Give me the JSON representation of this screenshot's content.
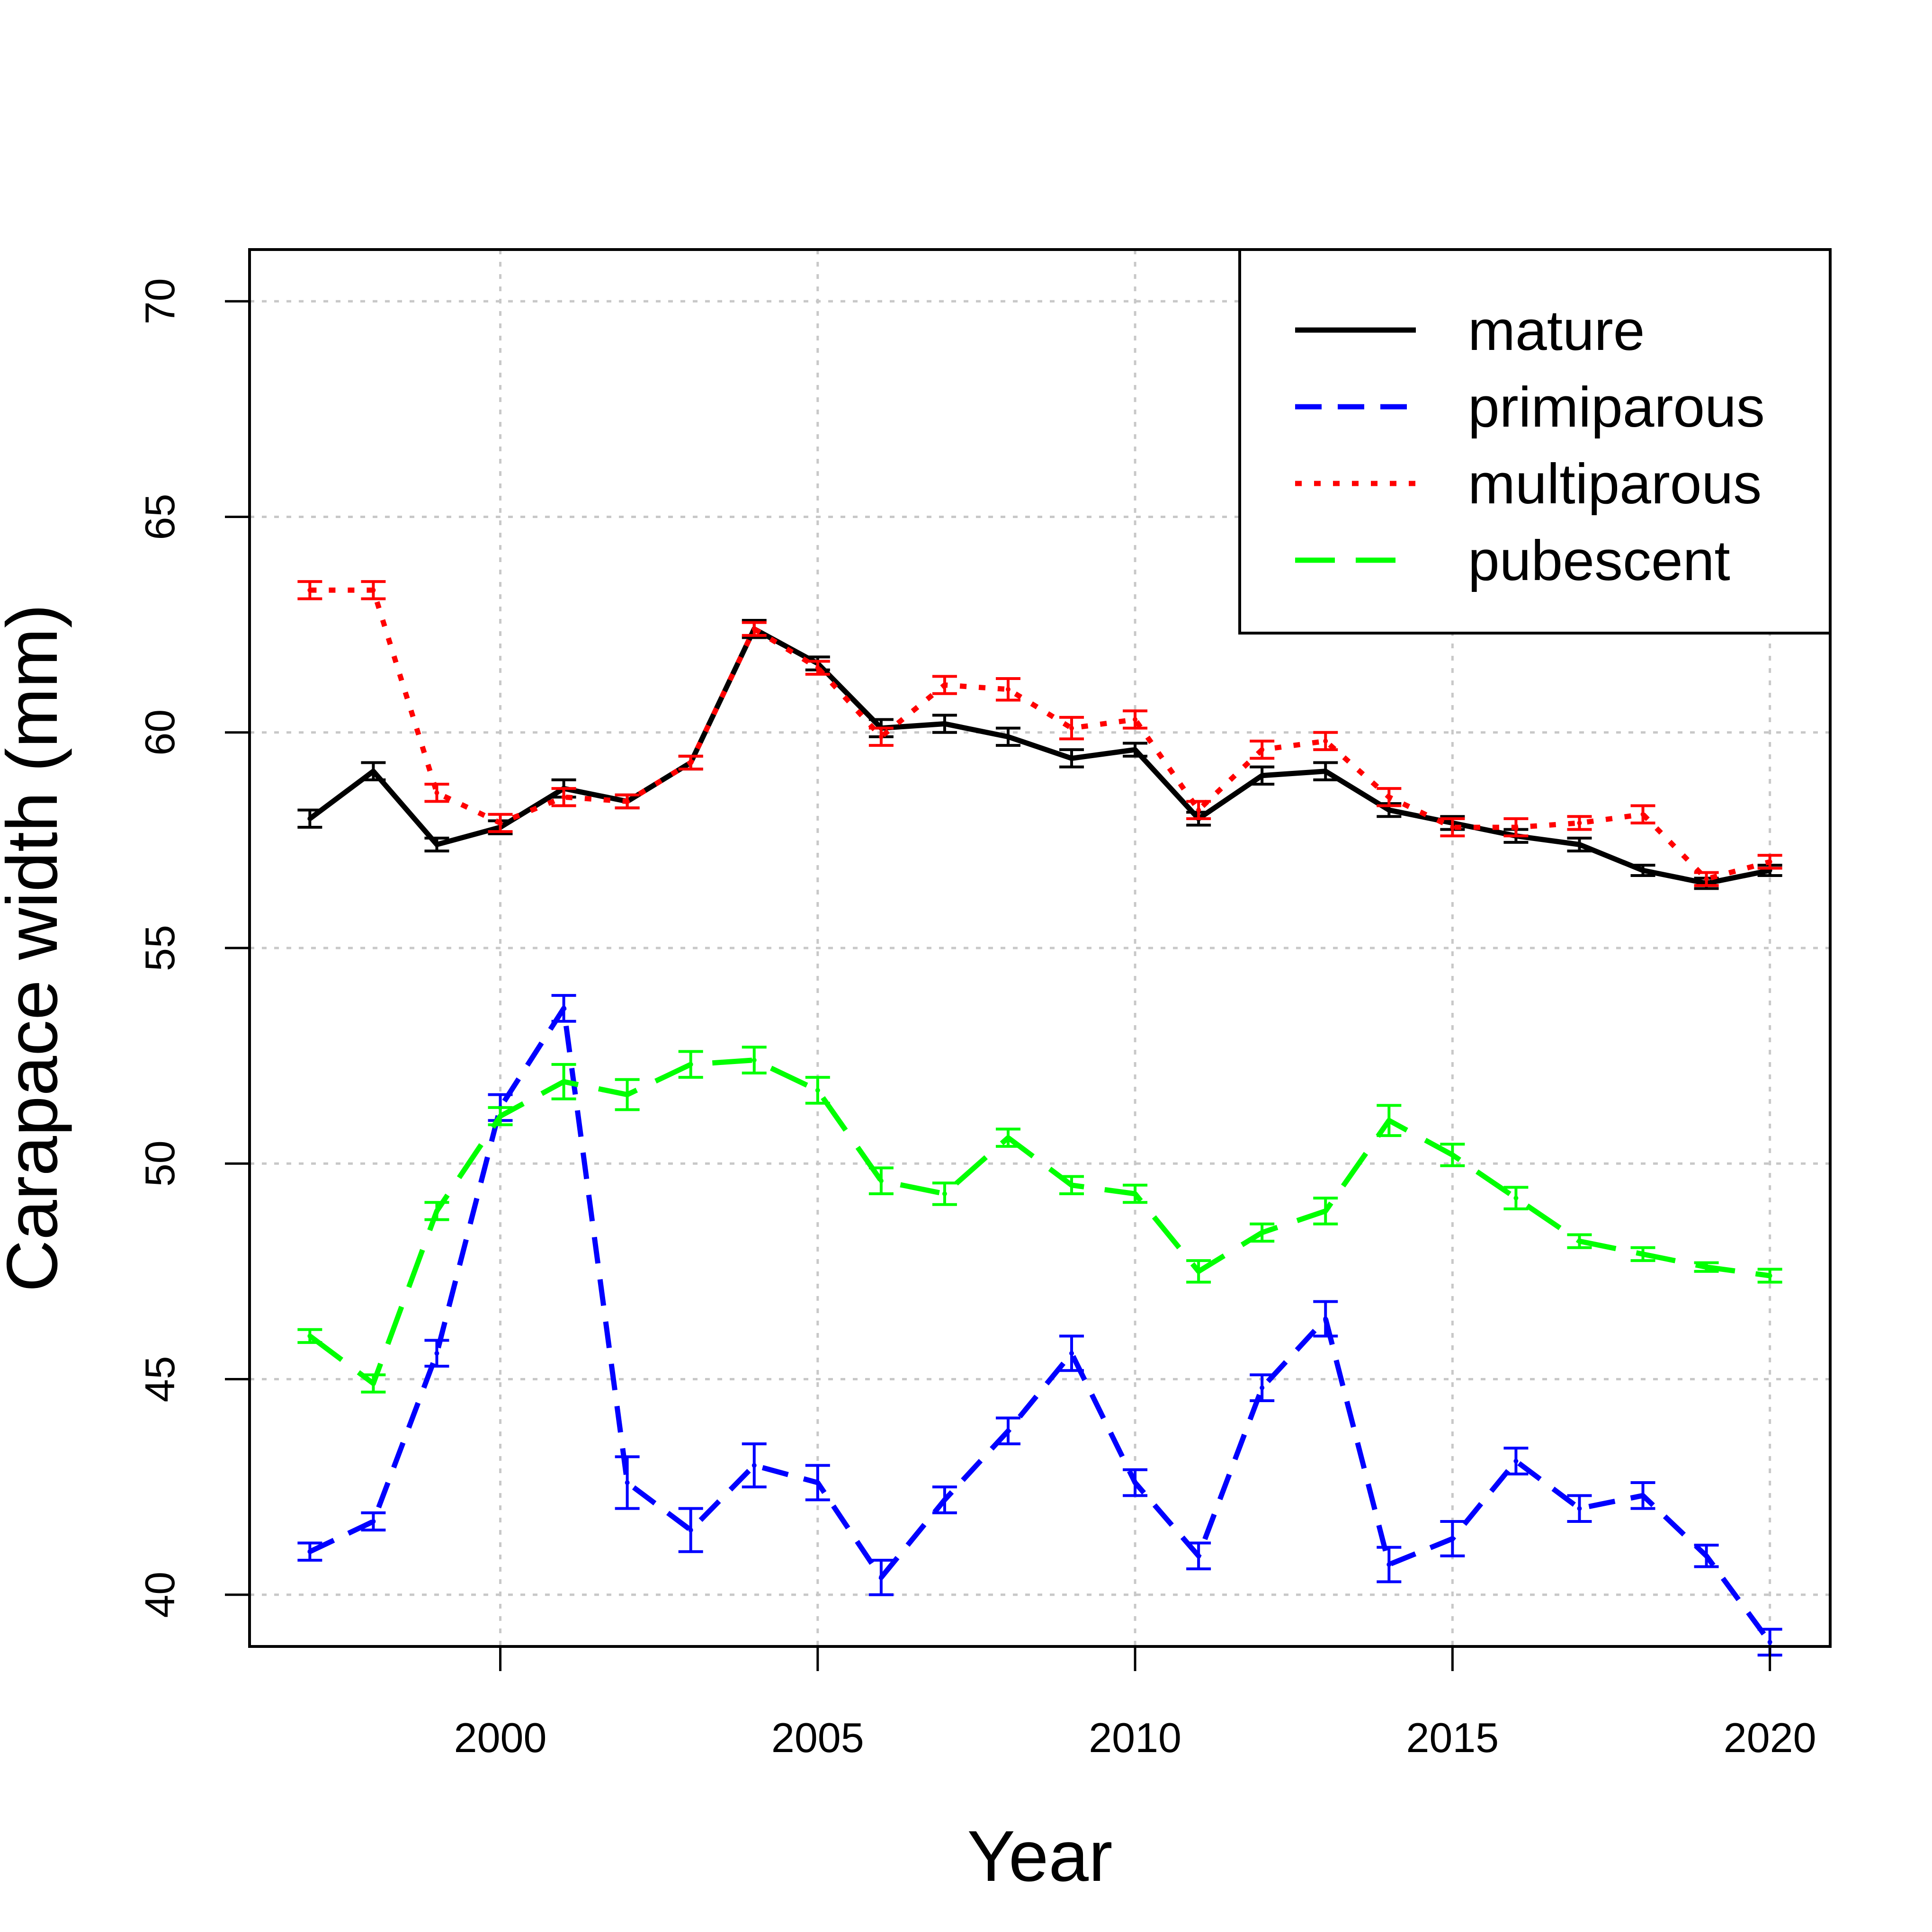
{
  "chart_data": {
    "type": "line",
    "title": "",
    "xlabel": "Year",
    "ylabel": "Carapace width (mm)",
    "xlim": [
      1996.05,
      2020.95
    ],
    "ylim": [
      38.8,
      71.2
    ],
    "xticks": [
      2000,
      2005,
      2010,
      2015,
      2020
    ],
    "yticks": [
      40,
      45,
      50,
      55,
      60,
      65,
      70
    ],
    "grid": true,
    "legend_position": "top-right",
    "x": [
      1997,
      1998,
      1999,
      2000,
      2001,
      2002,
      2003,
      2004,
      2005,
      2006,
      2007,
      2008,
      2009,
      2010,
      2011,
      2012,
      2013,
      2014,
      2015,
      2016,
      2017,
      2018,
      2019,
      2020
    ],
    "series": [
      {
        "name": "mature",
        "color": "#000000",
        "dash": "solid",
        "values": [
          58.0,
          59.1,
          57.4,
          57.8,
          58.7,
          58.4,
          59.3,
          62.4,
          61.6,
          60.1,
          60.2,
          59.9,
          59.4,
          59.6,
          58.0,
          59.0,
          59.1,
          58.2,
          57.9,
          57.6,
          57.4,
          56.8,
          56.5,
          56.8
        ],
        "errors": [
          0.2,
          0.2,
          0.15,
          0.15,
          0.2,
          0.15,
          0.15,
          0.2,
          0.15,
          0.2,
          0.2,
          0.2,
          0.2,
          0.15,
          0.15,
          0.2,
          0.2,
          0.15,
          0.15,
          0.15,
          0.15,
          0.12,
          0.12,
          0.12
        ]
      },
      {
        "name": "primiparous",
        "color": "#0000ff",
        "dash": "dashed",
        "values": [
          41.0,
          41.7,
          45.6,
          51.3,
          53.6,
          42.6,
          41.5,
          43.0,
          42.6,
          40.4,
          42.2,
          43.8,
          45.6,
          42.6,
          40.9,
          44.8,
          46.4,
          40.7,
          41.3,
          43.1,
          42.0,
          42.3,
          40.9,
          38.9
        ],
        "errors": [
          0.2,
          0.2,
          0.3,
          0.3,
          0.3,
          0.6,
          0.5,
          0.5,
          0.4,
          0.4,
          0.3,
          0.3,
          0.4,
          0.3,
          0.3,
          0.3,
          0.4,
          0.4,
          0.4,
          0.3,
          0.3,
          0.3,
          0.25,
          0.3
        ]
      },
      {
        "name": "multiparous",
        "color": "#ff0000",
        "dash": "dotted",
        "values": [
          63.3,
          63.3,
          58.6,
          57.9,
          58.5,
          58.4,
          59.3,
          62.4,
          61.5,
          59.9,
          61.1,
          61.0,
          60.1,
          60.3,
          58.2,
          59.6,
          59.8,
          58.5,
          57.8,
          57.8,
          57.9,
          58.1,
          56.6,
          57.0
        ],
        "errors": [
          0.2,
          0.2,
          0.2,
          0.2,
          0.2,
          0.15,
          0.15,
          0.15,
          0.15,
          0.2,
          0.2,
          0.25,
          0.25,
          0.2,
          0.2,
          0.2,
          0.2,
          0.2,
          0.2,
          0.2,
          0.15,
          0.2,
          0.15,
          0.15
        ]
      },
      {
        "name": "pubescent",
        "color": "#00ff00",
        "dash": "long-dashed",
        "values": [
          46.0,
          44.9,
          48.9,
          51.1,
          51.9,
          51.6,
          52.3,
          52.4,
          51.7,
          49.6,
          49.3,
          50.6,
          49.5,
          49.3,
          47.5,
          48.4,
          48.9,
          51.0,
          50.2,
          49.2,
          48.2,
          47.9,
          47.6,
          47.4
        ],
        "errors": [
          0.15,
          0.2,
          0.2,
          0.2,
          0.4,
          0.35,
          0.3,
          0.3,
          0.3,
          0.3,
          0.25,
          0.2,
          0.2,
          0.2,
          0.25,
          0.2,
          0.3,
          0.35,
          0.25,
          0.25,
          0.15,
          0.15,
          0.1,
          0.15
        ]
      }
    ]
  }
}
